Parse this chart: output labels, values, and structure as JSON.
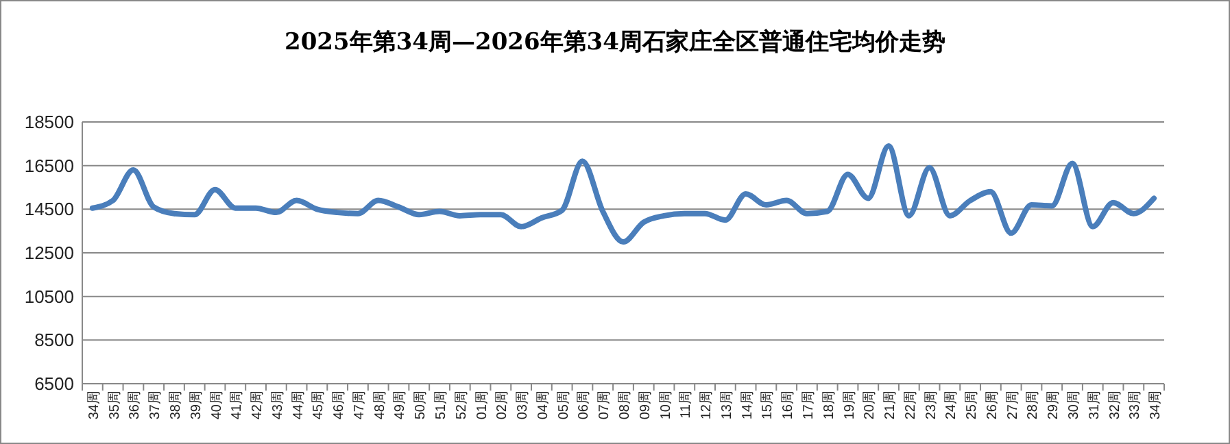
{
  "chart_data": {
    "type": "line",
    "title": "2025年第34周—2026年第34周石家庄全区普通住宅均价走势",
    "categories": [
      "34周",
      "35周",
      "36周",
      "37周",
      "38周",
      "39周",
      "40周",
      "41周",
      "42周",
      "43周",
      "44周",
      "45周",
      "46周",
      "47周",
      "48周",
      "49周",
      "50周",
      "51周",
      "52周",
      "01周",
      "02周",
      "03周",
      "04周",
      "05周",
      "06周",
      "07周",
      "08周",
      "09周",
      "10周",
      "11周",
      "12周",
      "13周",
      "14周",
      "15周",
      "16周",
      "17周",
      "18周",
      "19周",
      "20周",
      "21周",
      "22周",
      "23周",
      "24周",
      "25周",
      "26周",
      "27周",
      "28周",
      "29周",
      "30周",
      "31周",
      "32周",
      "33周",
      "34周"
    ],
    "series": [
      {
        "color": "#4a7ebb",
        "values": [
          14550,
          14900,
          16300,
          14600,
          14300,
          14250,
          15400,
          14550,
          14550,
          14350,
          14900,
          14500,
          14350,
          14300,
          14900,
          14600,
          14250,
          14400,
          14200,
          14250,
          14250,
          13700,
          14100,
          14450,
          16700,
          14400,
          13000,
          13900,
          14200,
          14300,
          14300,
          14000,
          15200,
          14700,
          14900,
          14300,
          14400,
          16100,
          15000,
          17400,
          14200,
          16400,
          14200,
          14900,
          15300,
          13400,
          14700,
          14650,
          16600,
          13700,
          14800,
          14300,
          15000
        ]
      }
    ],
    "ylim": [
      6500,
      18500
    ],
    "yticks": [
      6500,
      8500,
      10500,
      12500,
      14500,
      16500,
      18500
    ],
    "grid": "y",
    "marker": "none",
    "line_style": "solid"
  }
}
